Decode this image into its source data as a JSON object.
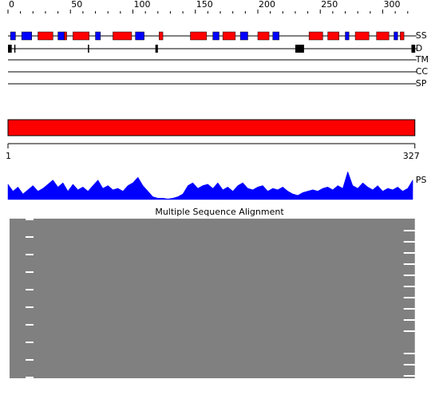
{
  "ruler": {
    "ticks": [
      0,
      50,
      100,
      150,
      200,
      250,
      300
    ]
  },
  "tracks": {
    "ss": "SS",
    "disorder": "D",
    "tm": "TM",
    "cc": "CC",
    "sp": "SP"
  },
  "secondary_structure": {
    "helix_color": "#ff0000",
    "strand_color": "#0000ff",
    "helices": [
      [
        24,
        36
      ],
      [
        45,
        47
      ],
      [
        52,
        65
      ],
      [
        84,
        99
      ],
      [
        121,
        124
      ],
      [
        146,
        159
      ],
      [
        172,
        182
      ],
      [
        200,
        209
      ],
      [
        241,
        252
      ],
      [
        256,
        265
      ],
      [
        278,
        289
      ],
      [
        295,
        305
      ],
      [
        314,
        317
      ]
    ],
    "strands": [
      [
        2,
        6
      ],
      [
        11,
        19
      ],
      [
        40,
        45
      ],
      [
        70,
        74
      ],
      [
        102,
        109
      ],
      [
        164,
        169
      ],
      [
        186,
        192
      ],
      [
        212,
        217
      ],
      [
        270,
        273
      ],
      [
        309,
        312
      ]
    ]
  },
  "disorder": {
    "color": "#000000",
    "regions": [
      [
        0,
        3
      ],
      [
        5,
        5
      ],
      [
        64,
        64
      ],
      [
        118,
        120
      ],
      [
        230,
        237
      ],
      [
        323,
        326
      ]
    ]
  },
  "sequence": {
    "start": 1,
    "length": 327,
    "color": "#ff0000"
  },
  "profile": {
    "label": "PS",
    "color": "#0000ff",
    "x": [
      1,
      5,
      9,
      13,
      17,
      21,
      25,
      29,
      33,
      37,
      41,
      45,
      49,
      53,
      57,
      61,
      65,
      69,
      73,
      77,
      81,
      85,
      89,
      93,
      97,
      101,
      105,
      109,
      113,
      117,
      121,
      125,
      129,
      133,
      137,
      141,
      145,
      149,
      153,
      157,
      161,
      165,
      169,
      173,
      177,
      181,
      185,
      189,
      193,
      197,
      201,
      205,
      209,
      213,
      217,
      221,
      225,
      229,
      233,
      237,
      241,
      245,
      249,
      253,
      257,
      261,
      265,
      269,
      273,
      277,
      281,
      285,
      289,
      293,
      297,
      301,
      305,
      309,
      313,
      317,
      321,
      325
    ],
    "values": [
      0.55,
      0.3,
      0.45,
      0.2,
      0.35,
      0.5,
      0.3,
      0.4,
      0.55,
      0.7,
      0.45,
      0.6,
      0.3,
      0.55,
      0.35,
      0.45,
      0.3,
      0.5,
      0.7,
      0.4,
      0.5,
      0.35,
      0.4,
      0.3,
      0.5,
      0.6,
      0.8,
      0.5,
      0.3,
      0.1,
      0.05,
      0.05,
      0.02,
      0.05,
      0.1,
      0.2,
      0.5,
      0.6,
      0.4,
      0.5,
      0.55,
      0.4,
      0.6,
      0.35,
      0.45,
      0.3,
      0.5,
      0.6,
      0.4,
      0.35,
      0.45,
      0.5,
      0.3,
      0.4,
      0.35,
      0.45,
      0.3,
      0.2,
      0.15,
      0.25,
      0.3,
      0.35,
      0.3,
      0.4,
      0.45,
      0.35,
      0.5,
      0.4,
      1.0,
      0.5,
      0.4,
      0.6,
      0.45,
      0.35,
      0.5,
      0.3,
      0.4,
      0.35,
      0.45,
      0.3,
      0.4,
      0.7
    ],
    "ylim": [
      0,
      1
    ]
  },
  "alignment": {
    "title": "Multiple Sequence Alignment"
  }
}
